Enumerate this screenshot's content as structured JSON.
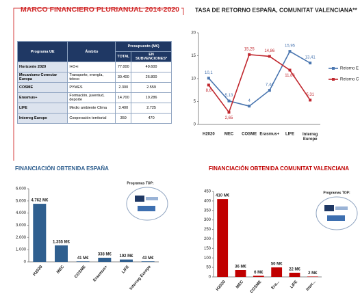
{
  "header": {
    "title": "MARCO FINANCIERO PLURIANUAL 2014-2020"
  },
  "table": {
    "header": [
      "Programa UE",
      "Ámbito",
      "Presupuesto (M€)"
    ],
    "subheader": [
      "TOTAL",
      "EN SUBVENCIONES*"
    ],
    "rows": [
      [
        "Horizonte 2020",
        "I+D+i",
        "77.000",
        "49.600"
      ],
      [
        "Mecanismo Conectar Europa",
        "Transporte, energía, teleco",
        "30.400",
        "26.800"
      ],
      [
        "COSME",
        "PYMES",
        "2.300",
        "2.559"
      ],
      [
        "Erasmus+",
        "Formación, juventud, deporte",
        "14.700",
        "10.286"
      ],
      [
        "LIFE",
        "Medio ambiente Clima",
        "3.400",
        "2.725"
      ],
      [
        "Interreg Europe",
        "Cooperación territorial",
        "359",
        "470"
      ]
    ]
  },
  "chart_data": [
    {
      "type": "line",
      "title": "TASA DE RETORNO ESPAÑA, COMUNITAT VALENCIANA**",
      "categories": [
        "H2020",
        "MEC",
        "COSME",
        "Erasmus+",
        "LIFE",
        "Interreg Europe"
      ],
      "series": [
        {
          "name": "Retorno E",
          "color": "#4a76b0",
          "values": [
            10.1,
            5.13,
            4,
            7.44,
            15.95,
            13.41
          ],
          "value_labels": [
            "10,1",
            "5,13",
            "4",
            "7,44",
            "15,95",
            "13,41"
          ]
        },
        {
          "name": "Retorno C",
          "color": "#c0262d",
          "values": [
            8.6,
            2.65,
            15.25,
            14.86,
            11.86,
            5.31
          ],
          "value_labels": [
            "8,6",
            "2,65",
            "15,25",
            "14,86",
            "11,86",
            "5,31"
          ]
        }
      ],
      "ylim": [
        0,
        20
      ],
      "yticks": [
        0,
        5,
        10,
        15,
        20
      ],
      "legend": "right"
    },
    {
      "type": "bar",
      "title": "FINANCIACIÓN OBTENIDA ESPAÑA",
      "categories": [
        "H2020",
        "MEC",
        "COSME",
        "Erasmus+",
        "LIFE",
        "Interreg Europe"
      ],
      "values": [
        4762,
        1355,
        41,
        338,
        192,
        43
      ],
      "value_labels": [
        "4.762 M€",
        "1.355 M€",
        "41 M€",
        "338 M€",
        "192 M€",
        "43 M€"
      ],
      "color": "#2f5f8f",
      "annotation": "Programas TOP:",
      "ylim": [
        0,
        6000
      ],
      "yticks": [
        0,
        {
          "value": 1000,
          "label": "1.000"
        },
        {
          "value": 2000,
          "label": "2.000"
        },
        {
          "value": 3000,
          "label": "3.000"
        },
        {
          "value": 4000,
          "label": "4.000"
        },
        {
          "value": 5000,
          "label": "5.000"
        },
        {
          "value": 6000,
          "label": "6.000"
        }
      ]
    },
    {
      "type": "bar",
      "title": "FINANCIACIÓN OBTENIDA COMUNITAT VALENCIANA",
      "categories": [
        "H2020",
        "MEC",
        "COSME",
        "Era...",
        "LIFE",
        "Inter..."
      ],
      "values": [
        410,
        36,
        6,
        50,
        22,
        2
      ],
      "value_labels": [
        "410 M€",
        "36 M€",
        "6 M€",
        "50 M€",
        "22 M€",
        "2 M€"
      ],
      "color": "#c00000",
      "annotation": "Programas TOP:",
      "ylim": [
        0,
        450
      ],
      "yticks": [
        0,
        50,
        100,
        150,
        200,
        250,
        300,
        350,
        400,
        450
      ]
    }
  ]
}
